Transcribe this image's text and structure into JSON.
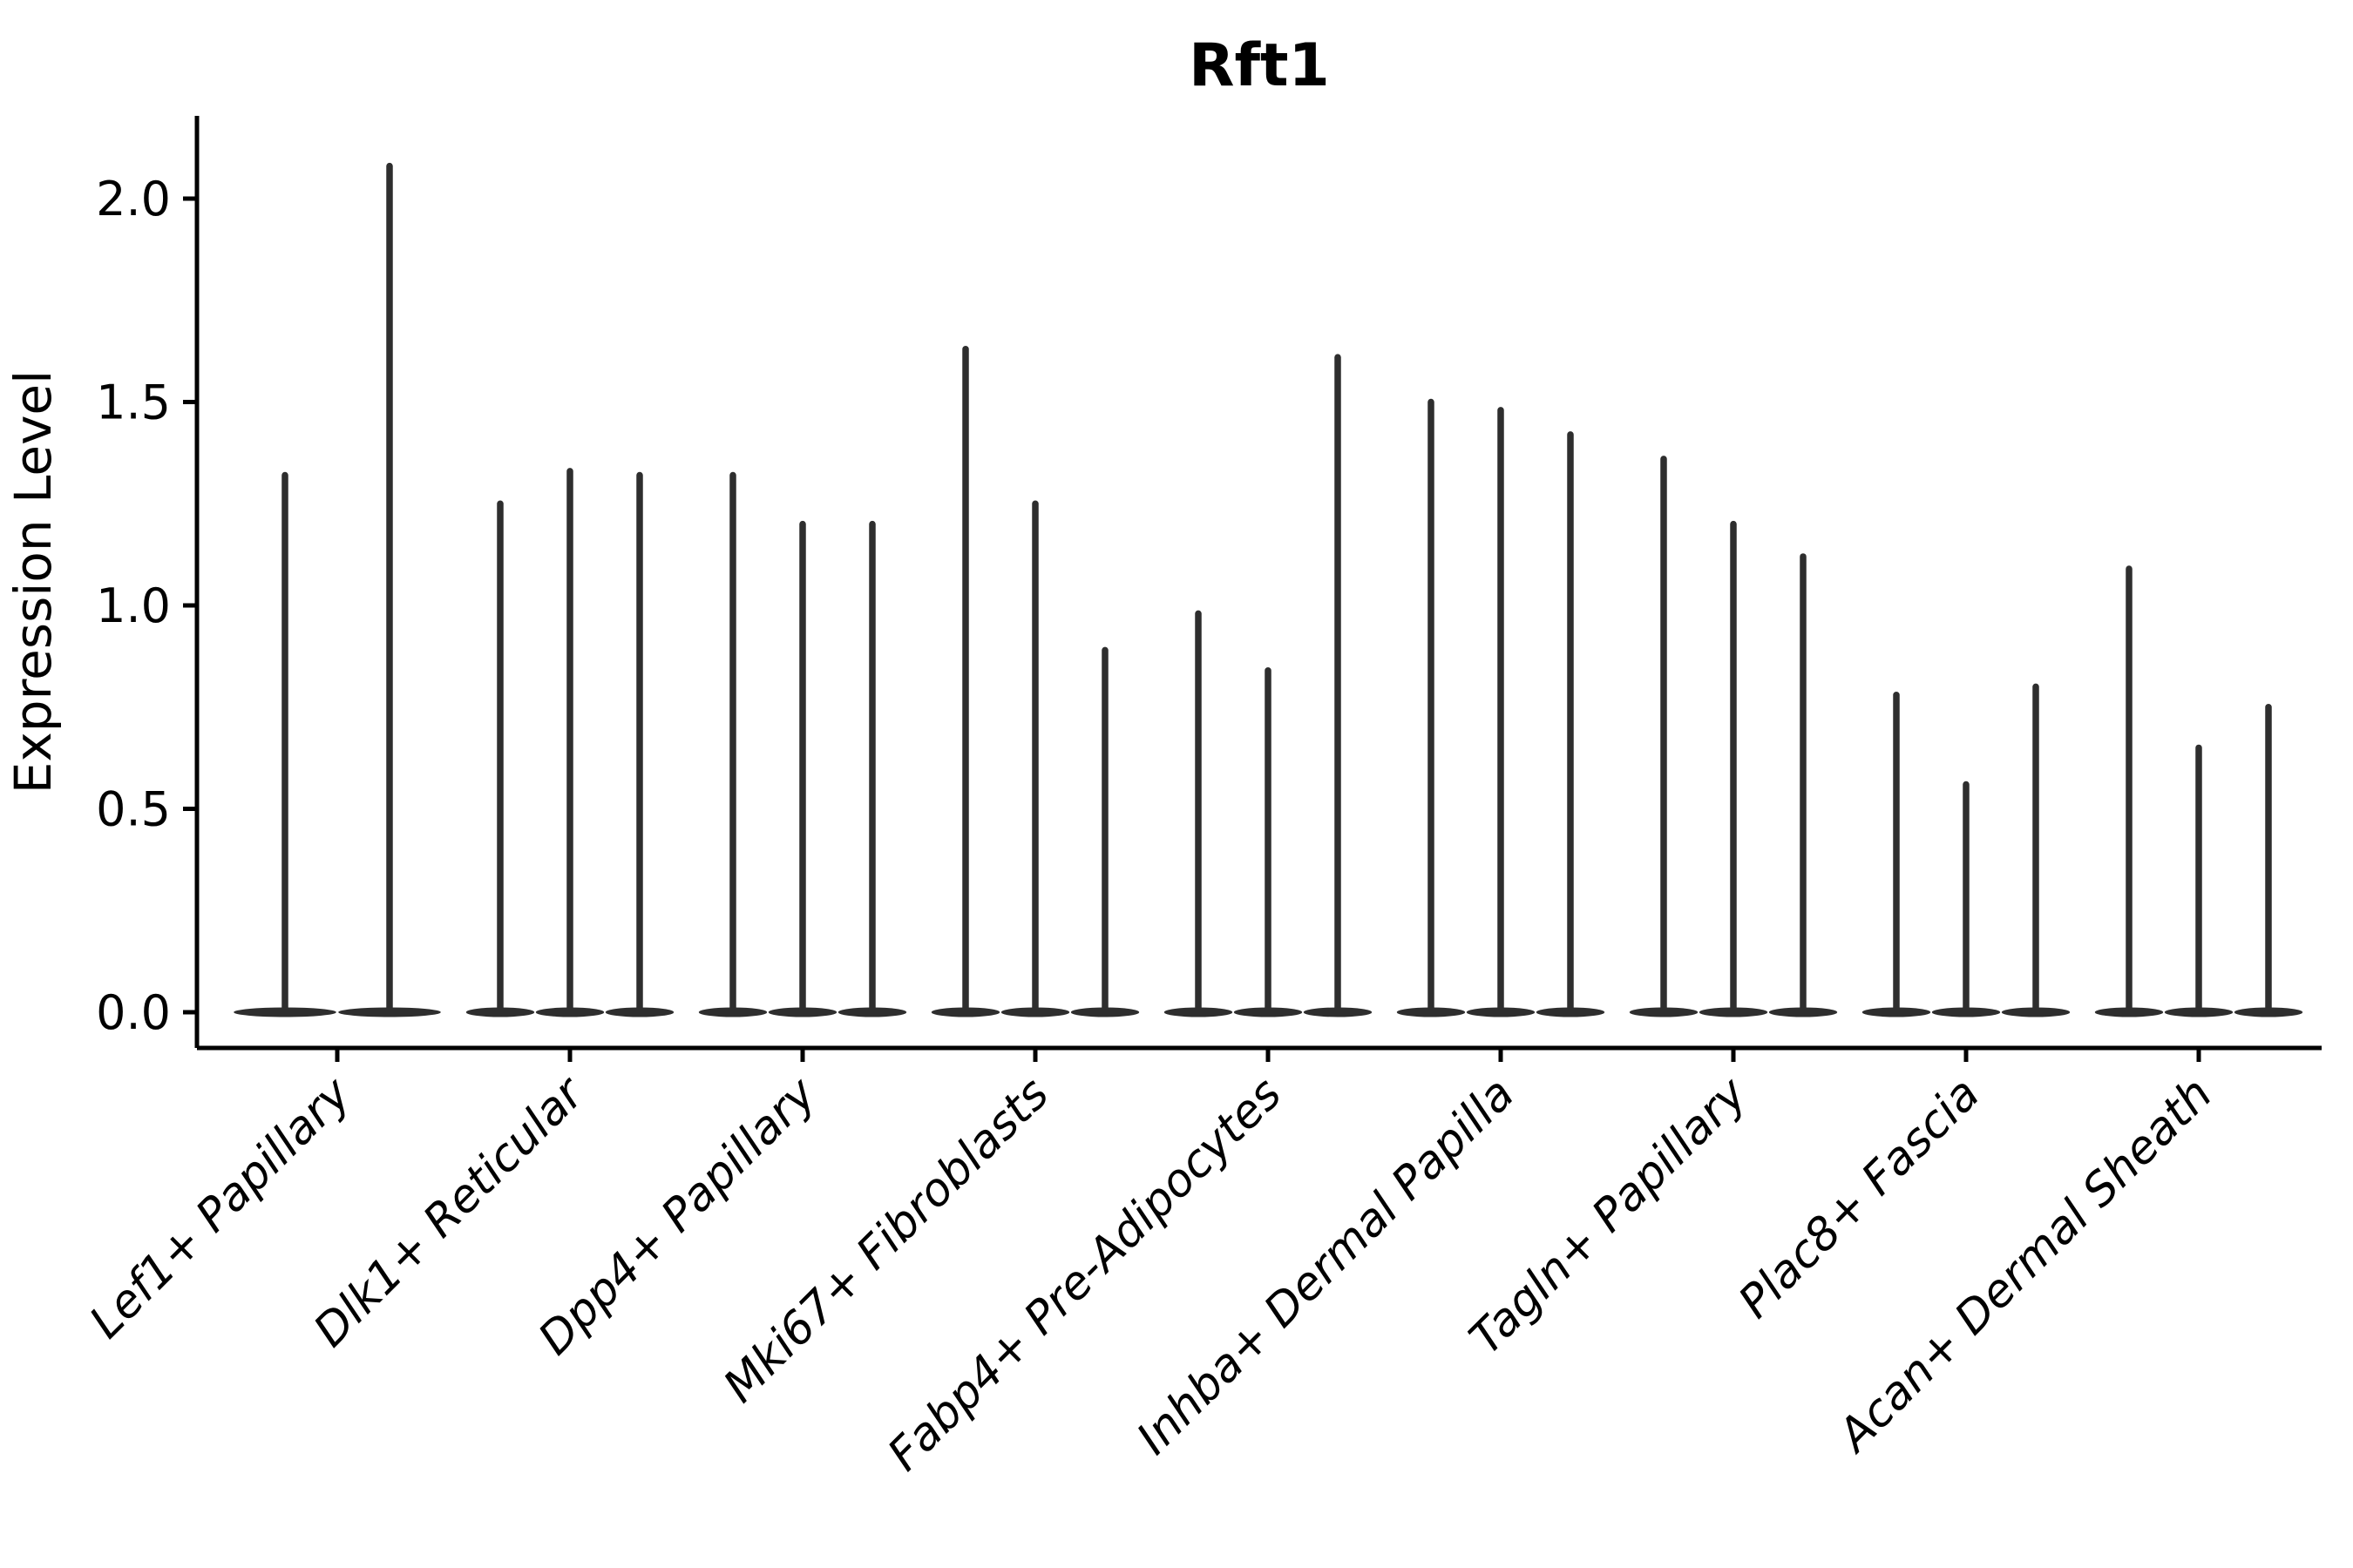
{
  "chart_data": {
    "type": "violin",
    "title": "Rft1",
    "xlabel": "",
    "ylabel": "Expression Level",
    "yticks": [
      "0.0",
      "0.5",
      "1.0",
      "1.5",
      "2.0"
    ],
    "ylim": [
      -0.09,
      2.2
    ],
    "grid": false,
    "legend": "none",
    "categories": [
      "Lef1+ Papillary",
      "Dlk1+ Reticular",
      "Dpp4+ Papillary",
      "Mki67+ Fibroblasts",
      "Fabp4+ Pre-Adipocytes",
      "Inhba+ Dermal Papilla",
      "Tagln+ Papillary",
      "Plac8+ Fascia",
      "Acan+ Dermal Sheath"
    ],
    "groups": [
      {
        "label": "Lef1+ Papillary",
        "violin_max_values": [
          1.32,
          2.08
        ]
      },
      {
        "label": "Dlk1+ Reticular",
        "violin_max_values": [
          1.25,
          1.33,
          1.32
        ]
      },
      {
        "label": "Dpp4+ Papillary",
        "violin_max_values": [
          1.32,
          1.2,
          1.2
        ]
      },
      {
        "label": "Mki67+ Fibroblasts",
        "violin_max_values": [
          1.63,
          1.25,
          0.89
        ]
      },
      {
        "label": "Fabp4+ Pre-Adipocytes",
        "violin_max_values": [
          0.98,
          0.84,
          1.61
        ]
      },
      {
        "label": "Inhba+ Dermal Papilla",
        "violin_max_values": [
          1.5,
          1.48,
          1.42
        ]
      },
      {
        "label": "Tagln+ Papillary",
        "violin_max_values": [
          1.36,
          1.2,
          1.12
        ]
      },
      {
        "label": "Plac8+ Fascia",
        "violin_max_values": [
          0.78,
          0.56,
          0.8
        ]
      },
      {
        "label": "Acan+ Dermal Sheath",
        "violin_max_values": [
          1.09,
          0.65,
          0.75
        ]
      }
    ],
    "distribution_note": "density mass concentrated at 0 for every violin (flat base), thin spike to max"
  },
  "style": {
    "violin_color": "#2e2e2e",
    "axis_color": "#000000",
    "text_color": "#000000",
    "background": "#ffffff"
  }
}
